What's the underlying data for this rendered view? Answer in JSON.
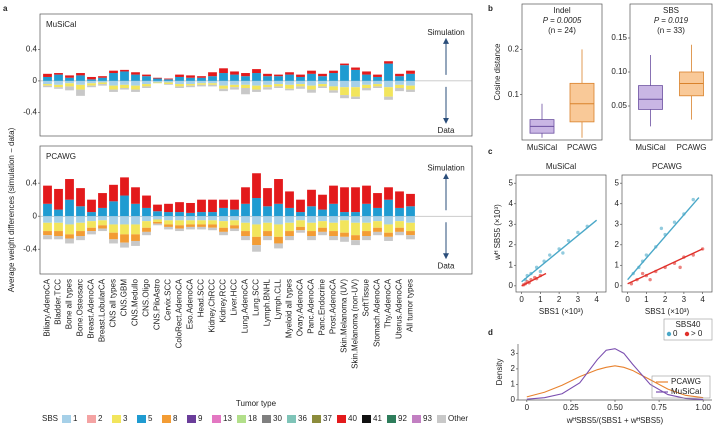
{
  "chart_data": [
    {
      "type": "bar",
      "panel": "a",
      "ylabel": "Average weight differences (simulation − data)",
      "xlabel": "Tumor type",
      "annotations": [
        "Simulation",
        "Data"
      ],
      "ylim": [
        -0.7,
        0.85
      ],
      "yticks": [
        -0.4,
        0,
        0.4
      ],
      "categories": [
        "Biliary.AdenoCA",
        "Bladder.TCC",
        "Bone all types",
        "Bone.Osteosarc",
        "Breast.AdenoCA",
        "Breast.LobularCA",
        "CNS all types",
        "CNS.GBM",
        "CNS.Medullo",
        "CNS.Oligo",
        "CNS.PiloAstro",
        "Cervix.SCC",
        "ColoRect.AdenoCA",
        "Eso.AdenoCA",
        "Head.SCC",
        "Kidney.ChRCC",
        "Kidney.RCC",
        "Liver.HCC",
        "Lung.AdenoCA",
        "Lung.SCC",
        "Lymph.BNHL",
        "Lymph.CLL",
        "Myeloid all types",
        "Ovary.AdenoCA",
        "Panc.AdenoCA",
        "Panc.Endocrine",
        "Prost.AdenoCA",
        "Skin.Melanoma (UV)",
        "Skin.Melanoma (non-UV)",
        "SoftTissue",
        "Stomach.AdenoCA",
        "Thy.AdenoCA",
        "Uterus.AdenoCA",
        "All tumor types"
      ],
      "legend_title": "SBS",
      "legend": [
        {
          "name": "1",
          "color": "#a6d0e8"
        },
        {
          "name": "2",
          "color": "#f4a3a3"
        },
        {
          "name": "3",
          "color": "#f2e55c"
        },
        {
          "name": "5",
          "color": "#1f9bd1"
        },
        {
          "name": "8",
          "color": "#f39c34"
        },
        {
          "name": "9",
          "color": "#6a3d9a"
        },
        {
          "name": "13",
          "color": "#e377c2"
        },
        {
          "name": "18",
          "color": "#b2df8a"
        },
        {
          "name": "30",
          "color": "#7f7f7f"
        },
        {
          "name": "36",
          "color": "#7fc4b8"
        },
        {
          "name": "37",
          "color": "#8c8c3c"
        },
        {
          "name": "40",
          "color": "#e31a1c"
        },
        {
          "name": "41",
          "color": "#111111"
        },
        {
          "name": "92",
          "color": "#2e7d5b"
        },
        {
          "name": "93",
          "color": "#c27fc2"
        },
        {
          "name": "Other",
          "color": "#c8c8c8"
        }
      ],
      "panels": [
        {
          "title": "MuSiCal",
          "series": [
            {
              "name": "5",
              "values": [
                0.05,
                0.08,
                0.04,
                0.07,
                0.02,
                0.04,
                0.1,
                0.12,
                0.08,
                0.06,
                0.03,
                0.02,
                0.05,
                0.04,
                0.04,
                0.06,
                0.1,
                0.08,
                0.06,
                0.1,
                0.06,
                0.06,
                0.08,
                0.05,
                0.09,
                0.06,
                0.1,
                0.2,
                0.14,
                0.08,
                0.05,
                0.22,
                0.06,
                0.09
              ]
            },
            {
              "name": "40",
              "values": [
                0.04,
                0.02,
                0.03,
                0.03,
                0.03,
                0.02,
                0.03,
                0.02,
                0.03,
                0.02,
                0.01,
                0.01,
                0.03,
                0.03,
                0.02,
                0.05,
                0.06,
                0.04,
                0.04,
                0.05,
                0.03,
                0.02,
                0.03,
                0.03,
                0.04,
                0.03,
                0.03,
                0.02,
                0.03,
                0.04,
                0.03,
                0.03,
                0.03,
                0.04
              ]
            },
            {
              "name": "1",
              "values": [
                -0.04,
                -0.05,
                -0.03,
                -0.05,
                -0.03,
                -0.02,
                -0.06,
                -0.05,
                -0.06,
                -0.04,
                -0.02,
                -0.02,
                -0.04,
                -0.04,
                -0.03,
                -0.03,
                -0.06,
                -0.05,
                -0.05,
                -0.06,
                -0.05,
                -0.04,
                -0.05,
                -0.04,
                -0.06,
                -0.04,
                -0.07,
                -0.08,
                -0.08,
                -0.05,
                -0.04,
                -0.08,
                -0.05,
                -0.06
              ]
            },
            {
              "name": "3",
              "values": [
                -0.02,
                -0.03,
                -0.04,
                -0.06,
                -0.03,
                -0.02,
                -0.05,
                -0.04,
                -0.05,
                -0.03,
                -0.01,
                -0.02,
                -0.03,
                -0.02,
                -0.02,
                -0.02,
                -0.04,
                -0.03,
                -0.04,
                -0.05,
                -0.03,
                -0.03,
                -0.05,
                -0.03,
                -0.05,
                -0.03,
                -0.05,
                -0.1,
                -0.12,
                -0.04,
                -0.03,
                -0.12,
                -0.04,
                -0.05
              ]
            },
            {
              "name": "Other",
              "values": [
                -0.02,
                -0.02,
                -0.05,
                -0.08,
                -0.02,
                -0.02,
                -0.03,
                -0.02,
                -0.03,
                -0.02,
                0,
                -0.01,
                -0.02,
                -0.02,
                -0.02,
                -0.02,
                -0.03,
                -0.03,
                -0.08,
                -0.03,
                -0.03,
                -0.02,
                -0.02,
                -0.03,
                -0.04,
                -0.02,
                -0.03,
                -0.04,
                -0.03,
                -0.03,
                -0.02,
                -0.04,
                -0.04,
                -0.03
              ]
            }
          ]
        },
        {
          "title": "PCAWG",
          "series": [
            {
              "name": "5",
              "values": [
                0.15,
                0.08,
                0.2,
                0.12,
                0.05,
                0.1,
                0.18,
                0.25,
                0.15,
                0.1,
                0.06,
                0.05,
                0.05,
                0.04,
                0.05,
                0.05,
                0.1,
                0.08,
                0.15,
                0.22,
                0.12,
                0.15,
                0.1,
                0.05,
                0.12,
                0.08,
                0.15,
                0.05,
                0.05,
                0.15,
                0.1,
                0.2,
                0.1,
                0.12
              ]
            },
            {
              "name": "40",
              "values": [
                0.22,
                0.25,
                0.25,
                0.22,
                0.15,
                0.18,
                0.2,
                0.22,
                0.2,
                0.15,
                0.08,
                0.1,
                0.12,
                0.12,
                0.15,
                0.15,
                0.1,
                0.12,
                0.2,
                0.3,
                0.22,
                0.3,
                0.2,
                0.15,
                0.2,
                0.18,
                0.22,
                0.3,
                0.3,
                0.22,
                0.18,
                0.15,
                0.2,
                0.15
              ]
            },
            {
              "name": "1",
              "values": [
                -0.08,
                -0.08,
                -0.1,
                -0.08,
                -0.06,
                -0.05,
                -0.1,
                -0.1,
                -0.1,
                -0.06,
                -0.04,
                -0.05,
                -0.05,
                -0.05,
                -0.05,
                -0.05,
                -0.06,
                -0.05,
                -0.08,
                -0.1,
                -0.08,
                -0.1,
                -0.08,
                -0.05,
                -0.08,
                -0.06,
                -0.08,
                -0.05,
                -0.08,
                -0.08,
                -0.06,
                -0.1,
                -0.06,
                -0.08
              ]
            },
            {
              "name": "3",
              "values": [
                -0.1,
                -0.1,
                -0.12,
                -0.1,
                -0.08,
                -0.06,
                -0.1,
                -0.12,
                -0.12,
                -0.08,
                -0.03,
                -0.05,
                -0.06,
                -0.05,
                -0.05,
                -0.05,
                -0.08,
                -0.06,
                -0.1,
                -0.15,
                -0.1,
                -0.15,
                -0.1,
                -0.08,
                -0.1,
                -0.08,
                -0.1,
                -0.15,
                -0.15,
                -0.1,
                -0.08,
                -0.1,
                -0.08,
                -0.1
              ]
            },
            {
              "name": "8",
              "values": [
                -0.05,
                -0.06,
                -0.05,
                -0.06,
                -0.04,
                -0.04,
                -0.08,
                -0.1,
                -0.08,
                -0.05,
                -0.02,
                -0.03,
                -0.04,
                -0.03,
                -0.03,
                -0.04,
                -0.05,
                -0.04,
                -0.06,
                -0.1,
                -0.06,
                -0.08,
                -0.06,
                -0.04,
                -0.06,
                -0.05,
                -0.06,
                -0.05,
                -0.06,
                -0.06,
                -0.05,
                -0.05,
                -0.05,
                -0.05
              ]
            },
            {
              "name": "Other",
              "values": [
                -0.05,
                -0.04,
                -0.06,
                -0.05,
                -0.04,
                -0.03,
                -0.05,
                -0.06,
                -0.06,
                -0.04,
                -0.02,
                -0.03,
                -0.03,
                -0.03,
                -0.03,
                -0.03,
                -0.04,
                -0.03,
                -0.05,
                -0.08,
                -0.05,
                -0.06,
                -0.05,
                -0.03,
                -0.05,
                -0.04,
                -0.05,
                -0.06,
                -0.06,
                -0.05,
                -0.04,
                -0.05,
                -0.04,
                -0.05
              ]
            }
          ]
        }
      ]
    },
    {
      "type": "box",
      "panel": "b",
      "ylabel": "Cosine distance",
      "categories": [
        "MuSiCal",
        "PCAWG"
      ],
      "colors": [
        [
          "#c9b6e4",
          "#6b4fa0"
        ],
        [
          "#f9c998",
          "#d9822b"
        ]
      ],
      "panels": [
        {
          "title": "Indel",
          "pvalue": "P = 0.0005",
          "n": "(n = 24)",
          "ylim": [
            0,
            0.3
          ],
          "yticks": [
            0.1,
            0.2
          ],
          "boxes": [
            {
              "min": 0.005,
              "q1": 0.015,
              "median": 0.03,
              "q3": 0.045,
              "max": 0.08
            },
            {
              "min": 0.005,
              "q1": 0.04,
              "median": 0.08,
              "q3": 0.125,
              "max": 0.2
            }
          ]
        },
        {
          "title": "SBS",
          "pvalue": "P = 0.019",
          "n": "(n = 33)",
          "ylim": [
            0,
            0.2
          ],
          "yticks": [
            0.05,
            {
              "value": 0.1,
              "label": "0.10"
            },
            0.15
          ],
          "boxes": [
            {
              "min": 0.02,
              "q1": 0.045,
              "median": 0.06,
              "q3": 0.08,
              "max": 0.125
            },
            {
              "min": 0.03,
              "q1": 0.065,
              "median": 0.083,
              "q3": 0.1,
              "max": 0.14
            }
          ]
        }
      ]
    },
    {
      "type": "scatter",
      "panel": "c",
      "xlabel": "SBS1 (×10³)",
      "ylabel": "wᴴ SBS5 (×10³)",
      "xlim": [
        -0.3,
        4.5
      ],
      "ylim": [
        -0.3,
        5.4
      ],
      "xticks": [
        0,
        1,
        2,
        3,
        4
      ],
      "yticks": [
        0,
        1,
        2,
        3,
        4,
        5
      ],
      "legend_title": "SBS40",
      "legend": [
        {
          "name": "0",
          "color": "#4aa8c8"
        },
        {
          "name": "> 0",
          "color": "#e0302a"
        }
      ],
      "panels": [
        {
          "title": "MuSiCal",
          "series": [
            {
              "name": "0",
              "x": [
                0.2,
                0.5,
                0.8,
                1.0,
                1.5,
                2.0,
                2.5,
                3.0,
                3.5,
                0.3,
                1.2,
                2.2
              ],
              "y": [
                0.3,
                0.6,
                0.9,
                0.7,
                1.5,
                1.8,
                2.2,
                2.6,
                2.9,
                0.5,
                1.2,
                1.6
              ]
            },
            {
              "name": "> 0",
              "x": [
                0.1,
                0.3,
                0.5,
                0.7,
                1.0,
                0.2,
                0.4,
                0.8
              ],
              "y": [
                0.05,
                0.2,
                0.3,
                0.4,
                0.5,
                0.1,
                0.15,
                0.35
              ]
            }
          ],
          "fits": [
            {
              "name": "0",
              "x": [
                0,
                4
              ],
              "y": [
                0.2,
                3.2
              ]
            },
            {
              "name": "> 0",
              "x": [
                0,
                1.3
              ],
              "y": [
                0,
                0.6
              ]
            }
          ]
        },
        {
          "title": "PCAWG",
          "series": [
            {
              "name": "0",
              "x": [
                0.3,
                0.6,
                1.0,
                1.5,
                2.0,
                2.5,
                3.0,
                3.5,
                0.8,
                1.8
              ],
              "y": [
                0.6,
                0.9,
                1.5,
                1.9,
                2.5,
                3.1,
                3.5,
                4.2,
                1.2,
                2.8
              ]
            },
            {
              "name": "> 0",
              "x": [
                0.2,
                0.5,
                1.0,
                1.5,
                2.0,
                2.5,
                3.0,
                3.5,
                4.0,
                0.8,
                1.2,
                2.8
              ],
              "y": [
                0.1,
                0.3,
                0.5,
                0.7,
                0.9,
                1.1,
                1.4,
                1.5,
                1.8,
                0.6,
                0.3,
                0.9
              ]
            }
          ],
          "fits": [
            {
              "name": "0",
              "x": [
                0,
                3.8
              ],
              "y": [
                0.3,
                4.3
              ]
            },
            {
              "name": "> 0",
              "x": [
                0,
                4
              ],
              "y": [
                0.1,
                1.8
              ]
            }
          ]
        }
      ]
    },
    {
      "type": "line",
      "panel": "d",
      "xlabel": "wᴴSBS5/(SBS1 + wᴴSBS5)",
      "ylabel": "Density",
      "xlim": [
        -0.05,
        1.05
      ],
      "ylim": [
        0,
        3.6
      ],
      "yticks": [
        0,
        1,
        2,
        3
      ],
      "xticks": [
        0,
        0.25,
        {
          "value": 0.5,
          "label": "0.50"
        },
        0.75,
        {
          "value": 1,
          "label": "1.00"
        }
      ],
      "x": [
        0,
        0.1,
        0.2,
        0.3,
        0.4,
        0.45,
        0.5,
        0.55,
        0.6,
        0.7,
        0.8,
        0.9,
        1.0
      ],
      "series": [
        {
          "name": "PCAWG",
          "color": "#e8822e",
          "values": [
            0.2,
            0.5,
            0.95,
            1.5,
            1.95,
            2.1,
            2.2,
            2.1,
            1.9,
            1.3,
            0.7,
            0.3,
            0.15
          ]
        },
        {
          "name": "MuSiCal",
          "color": "#7b4fb0",
          "values": [
            0.05,
            0.15,
            0.4,
            1.1,
            2.6,
            3.2,
            3.3,
            3.0,
            2.3,
            1.0,
            0.35,
            0.1,
            0.03
          ]
        }
      ]
    }
  ]
}
